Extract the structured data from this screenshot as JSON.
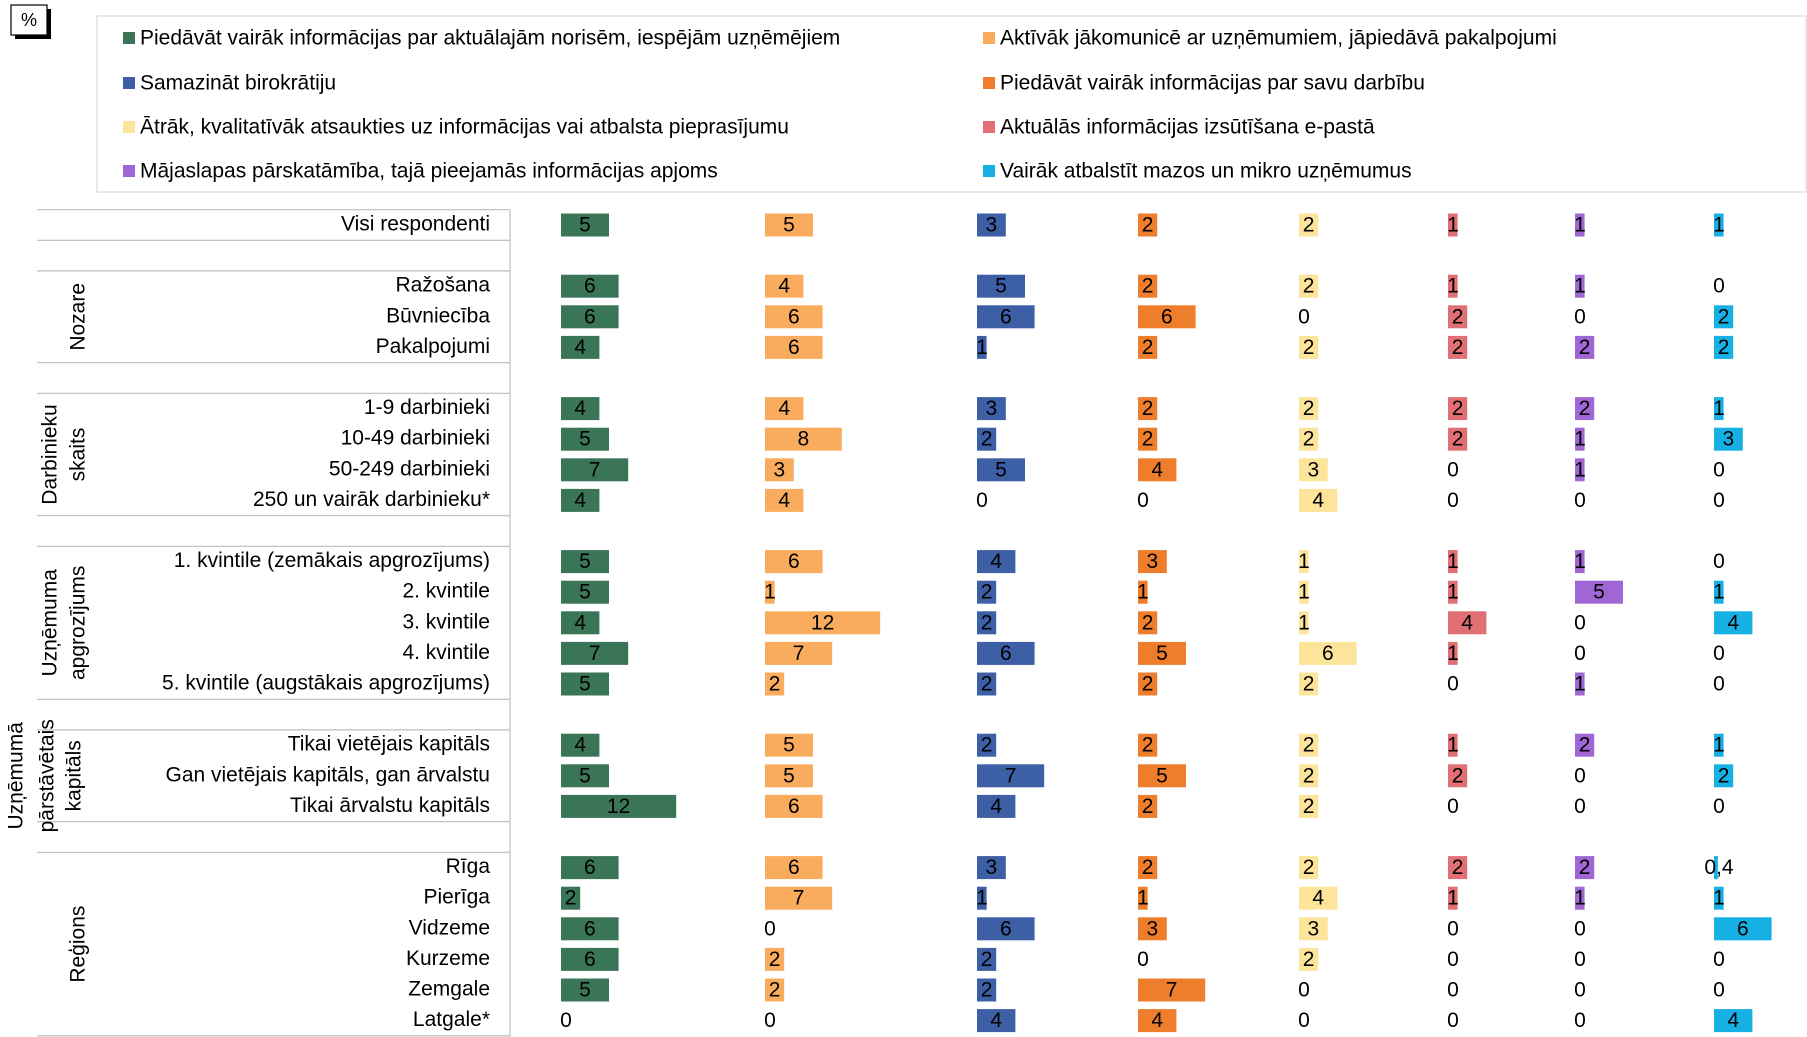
{
  "chart_data": {
    "type": "bar",
    "unit_label": "%",
    "groups": [
      {
        "categories": [
          "Visi respondenti"
        ]
      },
      {
        "label": [
          "Nozare"
        ],
        "categories": [
          "Ražošana",
          "Būvniecība",
          "Pakalpojumi"
        ]
      },
      {
        "label": [
          "Darbinieku",
          "skaits"
        ],
        "categories": [
          "1-9 darbinieki",
          "10-49 darbinieki",
          "50-249 darbinieki",
          "250 un vairāk darbinieku*"
        ]
      },
      {
        "label": [
          "Uzņēmuma",
          "apgrozījums"
        ],
        "categories": [
          "1. kvintile (zemākais apgrozījums)",
          "2. kvintile",
          "3. kvintile",
          "4. kvintile",
          "5. kvintile (augstākais apgrozījums)"
        ]
      },
      {
        "label": [
          "Uzņēmumā",
          "pārstāvētais",
          "kapitāls"
        ],
        "categories": [
          "Tikai vietējais kapitāls",
          "Gan vietējais kapitāls, gan ārvalstu",
          "Tikai ārvalstu kapitāls"
        ]
      },
      {
        "label": [
          "Reģions"
        ],
        "categories": [
          "Rīga",
          "Pierīga",
          "Vidzeme",
          "Kurzeme",
          "Zemgale",
          "Latgale*"
        ]
      }
    ],
    "series": [
      {
        "name": "Piedāvāt vairāk informācijas par aktuālajām norisēm, iespējām uzņēmējiem",
        "color": "#3b7557",
        "label_color": "#ffffff",
        "values": [
          5,
          6,
          6,
          4,
          4,
          5,
          7,
          4,
          5,
          5,
          4,
          7,
          5,
          4,
          5,
          12,
          6,
          2,
          6,
          6,
          5,
          0
        ]
      },
      {
        "name": "Aktīvāk jākomunicē ar uzņēmumiem, jāpiedāvā pakalpojumi",
        "color": "#f9ac5d",
        "label_color": "#000000",
        "values": [
          5,
          4,
          6,
          6,
          4,
          8,
          3,
          4,
          6,
          1,
          12,
          7,
          2,
          5,
          5,
          6,
          6,
          7,
          0,
          2,
          2,
          0
        ]
      },
      {
        "name": "Samazināt birokrātiju",
        "color": "#3d5fa5",
        "label_color": "#ffffff",
        "values": [
          3,
          5,
          6,
          1,
          3,
          2,
          5,
          0,
          4,
          2,
          2,
          6,
          2,
          2,
          7,
          4,
          3,
          1,
          6,
          2,
          2,
          4
        ]
      },
      {
        "name": "Piedāvāt vairāk informācijas par savu darbību",
        "color": "#ee7d2c",
        "label_color": "#000000",
        "values": [
          2,
          2,
          6,
          2,
          2,
          2,
          4,
          0,
          3,
          1,
          2,
          5,
          2,
          2,
          5,
          2,
          2,
          1,
          3,
          0,
          7,
          4
        ]
      },
      {
        "name": "Ātrāk, kvalitatīvāk atsaukties uz informācijas vai atbalsta pieprasījumu",
        "color": "#fde49b",
        "label_color": "#000000",
        "values": [
          2,
          2,
          0,
          2,
          2,
          2,
          3,
          4,
          1,
          1,
          1,
          6,
          2,
          2,
          2,
          2,
          2,
          4,
          3,
          2,
          0,
          0
        ]
      },
      {
        "name": "Aktuālās informācijas izsūtīšana e-pastā",
        "color": "#e07074",
        "label_color": "#000000",
        "values": [
          1,
          1,
          2,
          2,
          2,
          2,
          0,
          0,
          1,
          1,
          4,
          1,
          0,
          1,
          2,
          0,
          2,
          1,
          0,
          0,
          0,
          0
        ]
      },
      {
        "name": "Mājaslapas pārskatāmība, tajā pieejamās informācijas apjoms",
        "color": "#a066d3",
        "label_color": "#000000",
        "values": [
          1,
          1,
          0,
          2,
          2,
          1,
          1,
          0,
          1,
          5,
          0,
          0,
          1,
          2,
          0,
          0,
          2,
          1,
          0,
          0,
          0,
          0
        ]
      },
      {
        "name": "Vairāk atbalstīt mazos un mikro uzņēmumus",
        "color": "#17b0e5",
        "label_color": "#000000",
        "values": [
          1,
          0,
          2,
          2,
          1,
          3,
          0,
          0,
          0,
          1,
          4,
          0,
          0,
          1,
          2,
          0,
          0.4,
          1,
          6,
          0,
          0,
          4
        ],
        "value_labels": [
          "1",
          "0",
          "2",
          "2",
          "1",
          "3",
          "0",
          "0",
          "0",
          "1",
          "4",
          "0",
          "0",
          "1",
          "2",
          "0",
          "0,4",
          "1",
          "6",
          "0",
          "0",
          "4"
        ]
      }
    ]
  }
}
